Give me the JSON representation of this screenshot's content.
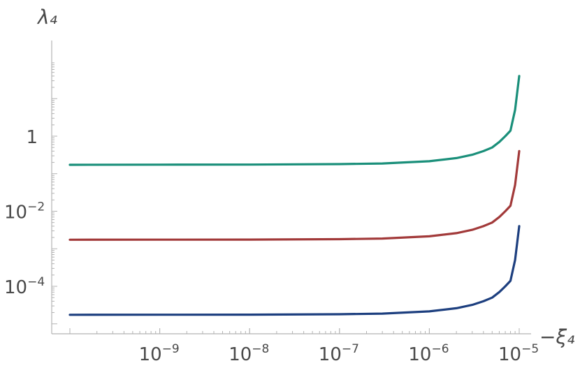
{
  "chart_data": {
    "type": "line",
    "title": "",
    "xlabel": "−ξ₄",
    "ylabel": "λ₄",
    "xscale": "log",
    "yscale": "log",
    "xlim": [
      1e-10,
      1e-05
    ],
    "ylim": [
      1e-05,
      40
    ],
    "x_ticks": [
      {
        "value": 1e-09,
        "base": "10",
        "exp": "−9"
      },
      {
        "value": 1e-08,
        "base": "10",
        "exp": "−8"
      },
      {
        "value": 1e-07,
        "base": "10",
        "exp": "−7"
      },
      {
        "value": 1e-06,
        "base": "10",
        "exp": "−6"
      },
      {
        "value": 1e-05,
        "base": "10",
        "exp": "−5"
      }
    ],
    "y_ticks": [
      {
        "value": 1,
        "base": "1",
        "exp": ""
      },
      {
        "value": 0.01,
        "base": "10",
        "exp": "−2"
      },
      {
        "value": 0.0001,
        "base": "10",
        "exp": "−4"
      }
    ],
    "grid": false,
    "legend": "none",
    "series": [
      {
        "color": "#1a8f7a",
        "x": [
          1e-10,
          1e-09,
          1e-08,
          1e-07,
          3e-07,
          1e-06,
          2e-06,
          3e-06,
          4e-06,
          5e-06,
          6e-06,
          7e-06,
          8e-06,
          9e-06,
          1e-05
        ],
        "values": [
          0.173,
          0.174,
          0.175,
          0.18,
          0.187,
          0.215,
          0.26,
          0.32,
          0.4,
          0.5,
          0.7,
          1.0,
          1.4,
          5.0,
          40.0
        ]
      },
      {
        "color": "#a23a3a",
        "x": [
          1e-10,
          1e-09,
          1e-08,
          1e-07,
          3e-07,
          1e-06,
          2e-06,
          3e-06,
          4e-06,
          5e-06,
          6e-06,
          7e-06,
          8e-06,
          9e-06,
          1e-05
        ],
        "values": [
          0.00174,
          0.00175,
          0.00176,
          0.0018,
          0.00187,
          0.00215,
          0.0026,
          0.0032,
          0.004,
          0.005,
          0.007,
          0.01,
          0.014,
          0.05,
          0.4
        ]
      },
      {
        "color": "#1d3f7f",
        "x": [
          1e-10,
          1e-09,
          1e-08,
          1e-07,
          3e-07,
          1e-06,
          2e-06,
          3e-06,
          4e-06,
          5e-06,
          6e-06,
          7e-06,
          8e-06,
          9e-06,
          1e-05
        ],
        "values": [
          1.74e-05,
          1.75e-05,
          1.76e-05,
          1.8e-05,
          1.87e-05,
          2.15e-05,
          2.6e-05,
          3.2e-05,
          4e-05,
          5e-05,
          7e-05,
          0.0001,
          0.00014,
          0.0005,
          0.004
        ]
      }
    ]
  }
}
